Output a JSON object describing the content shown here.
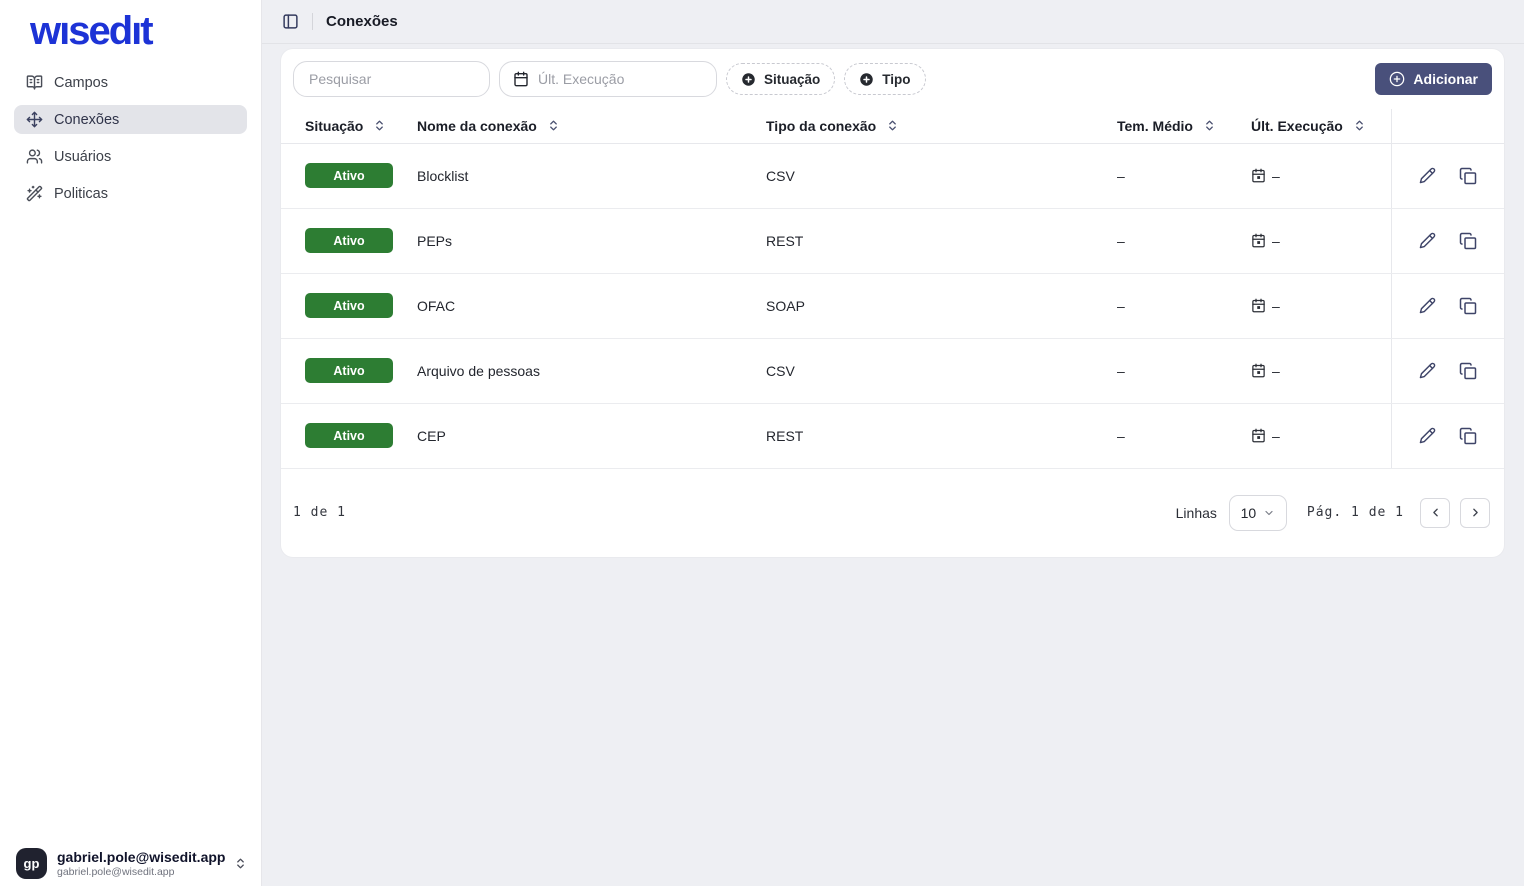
{
  "brand": {
    "logo_text": "wısedıt"
  },
  "sidebar": {
    "items": [
      {
        "label": "Campos",
        "icon": "book-open-icon",
        "active": false
      },
      {
        "label": "Conexões",
        "icon": "move-icon",
        "active": true
      },
      {
        "label": "Usuários",
        "icon": "users-icon",
        "active": false
      },
      {
        "label": "Politicas",
        "icon": "wand-icon",
        "active": false
      }
    ],
    "user": {
      "initials": "gp",
      "name": "gabriel.pole@wisedit.app",
      "email": "gabriel.pole@wisedit.app"
    }
  },
  "header": {
    "title": "Conexões"
  },
  "filters": {
    "search_placeholder": "Pesquisar",
    "date_filter_label": "Últ. Execução",
    "chips": [
      {
        "label": "Situação"
      },
      {
        "label": "Tipo"
      }
    ],
    "add_button_label": "Adicionar"
  },
  "table": {
    "columns": [
      "Situação",
      "Nome da conexão",
      "Tipo da conexão",
      "Tem. Médio",
      "Últ. Execução"
    ],
    "rows": [
      {
        "status": "Ativo",
        "name": "Blocklist",
        "type": "CSV",
        "avg_time": "–",
        "last_run": "–"
      },
      {
        "status": "Ativo",
        "name": "PEPs",
        "type": "REST",
        "avg_time": "–",
        "last_run": "–"
      },
      {
        "status": "Ativo",
        "name": "OFAC",
        "type": "SOAP",
        "avg_time": "–",
        "last_run": "–"
      },
      {
        "status": "Ativo",
        "name": "Arquivo de pessoas",
        "type": "CSV",
        "avg_time": "–",
        "last_run": "–"
      },
      {
        "status": "Ativo",
        "name": "CEP",
        "type": "REST",
        "avg_time": "–",
        "last_run": "–"
      }
    ]
  },
  "pagination": {
    "summary": "1 de 1",
    "rows_label": "Linhas",
    "rows_per_page": "10",
    "page_label": "Pág. 1 de 1"
  },
  "colors": {
    "brand_blue": "#1d33d6",
    "status_active_green": "#2d7d33",
    "add_button_indigo": "#49507b",
    "page_background": "#eeeff3"
  }
}
